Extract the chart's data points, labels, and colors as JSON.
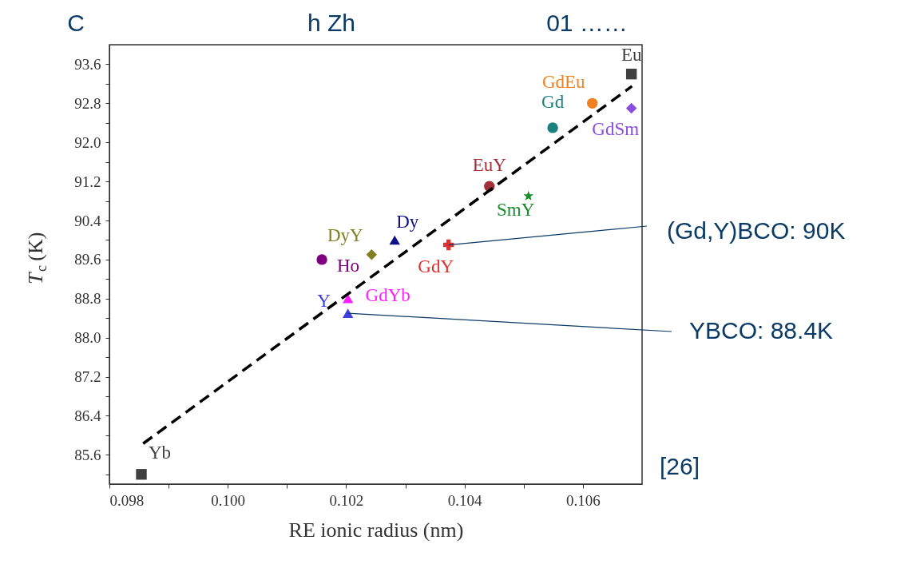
{
  "chart_data": {
    "type": "scatter",
    "xlabel": "RE ionic radius (nm)",
    "ylabel": "T$_{c}$ (K)",
    "xlim": [
      0.098,
      0.107
    ],
    "ylim": [
      85.0,
      94.0
    ],
    "xticks": [
      0.098,
      {
        "value": 0.099,
        "label": null
      },
      {
        "value": 0.1,
        "label": "0.100"
      },
      {
        "value": 0.101,
        "label": null
      },
      0.102,
      {
        "value": 0.103,
        "label": null
      },
      0.104,
      {
        "value": 0.105,
        "label": null
      },
      0.106
    ],
    "yticks": [
      {
        "value": 85.2,
        "label": null
      },
      85.6,
      {
        "value": 86.0,
        "label": null
      },
      86.4,
      {
        "value": 86.8,
        "label": null
      },
      87.2,
      {
        "value": 87.6,
        "label": null
      },
      {
        "value": 88.0,
        "label": "88.0"
      },
      {
        "value": 88.4,
        "label": null
      },
      88.8,
      {
        "value": 89.2,
        "label": null
      },
      89.6,
      {
        "value": 90.0,
        "label": null
      },
      90.4,
      {
        "value": 90.8,
        "label": null
      },
      91.2,
      {
        "value": 91.6,
        "label": null
      },
      {
        "value": 92.0,
        "label": "92.0"
      },
      {
        "value": 92.4,
        "label": null
      },
      92.8,
      {
        "value": 93.2,
        "label": null
      },
      93.6
    ],
    "grid": false,
    "legend": false,
    "series": [
      {
        "name": "Eu",
        "color": "#404040",
        "marker": "square",
        "x": [
          0.10682
        ],
        "values": [
          93.4
        ]
      },
      {
        "name": "GdEu",
        "color": "#f08020",
        "marker": "circle",
        "x": [
          0.10616
        ],
        "values": [
          92.8
        ]
      },
      {
        "name": "GdSm",
        "color": "#8a4de0",
        "marker": "diamond",
        "x": [
          0.10682
        ],
        "values": [
          92.7
        ]
      },
      {
        "name": "Gd",
        "color": "#1a8080",
        "marker": "circle",
        "x": [
          0.10549
        ],
        "values": [
          92.3
        ]
      },
      {
        "name": "EuY",
        "color": "#a0303a",
        "marker": "circle",
        "x": [
          0.10442
        ],
        "values": [
          91.1
        ]
      },
      {
        "name": "SmY",
        "color": "#1a8a2a",
        "marker": "star",
        "x": [
          0.10508
        ],
        "values": [
          90.9
        ]
      },
      {
        "name": "Dy",
        "color": "#10108a",
        "marker": "triangle",
        "x": [
          0.10282
        ],
        "values": [
          90.0
        ]
      },
      {
        "name": "GdY",
        "color": "#e03030",
        "marker": "cross",
        "x": [
          0.10373
        ],
        "values": [
          89.9
        ]
      },
      {
        "name": "DyY",
        "color": "#808020",
        "marker": "diamond",
        "x": [
          0.10243
        ],
        "values": [
          89.7
        ]
      },
      {
        "name": "Ho",
        "color": "#800080",
        "marker": "circle",
        "x": [
          0.10159
        ],
        "values": [
          89.6
        ]
      },
      {
        "name": "GdYb",
        "color": "#ff20ff",
        "marker": "triangle",
        "x": [
          0.10203
        ],
        "values": [
          88.8
        ]
      },
      {
        "name": "Y",
        "color": "#4040e0",
        "marker": "triangle",
        "x": [
          0.10203
        ],
        "values": [
          88.5
        ]
      },
      {
        "name": "Yb",
        "color": "#404040",
        "marker": "square",
        "x": [
          0.09854
        ],
        "values": [
          85.2
        ]
      },
      {
        "type": "line",
        "color": "#000000",
        "line_style": "dashed",
        "marker": "none",
        "x": [
          0.09857,
          0.10683
        ],
        "values": [
          85.83,
          93.15
        ]
      }
    ],
    "annotations": [
      "C",
      "h Zh",
      "01 ……",
      {
        "text": "(Gd,Y)BCO: 90K",
        "x": 0.10373,
        "y": 89.9
      },
      {
        "text": "YBCO: 88.4K",
        "x": 0.10203,
        "y": 88.5
      },
      "[26]"
    ]
  }
}
